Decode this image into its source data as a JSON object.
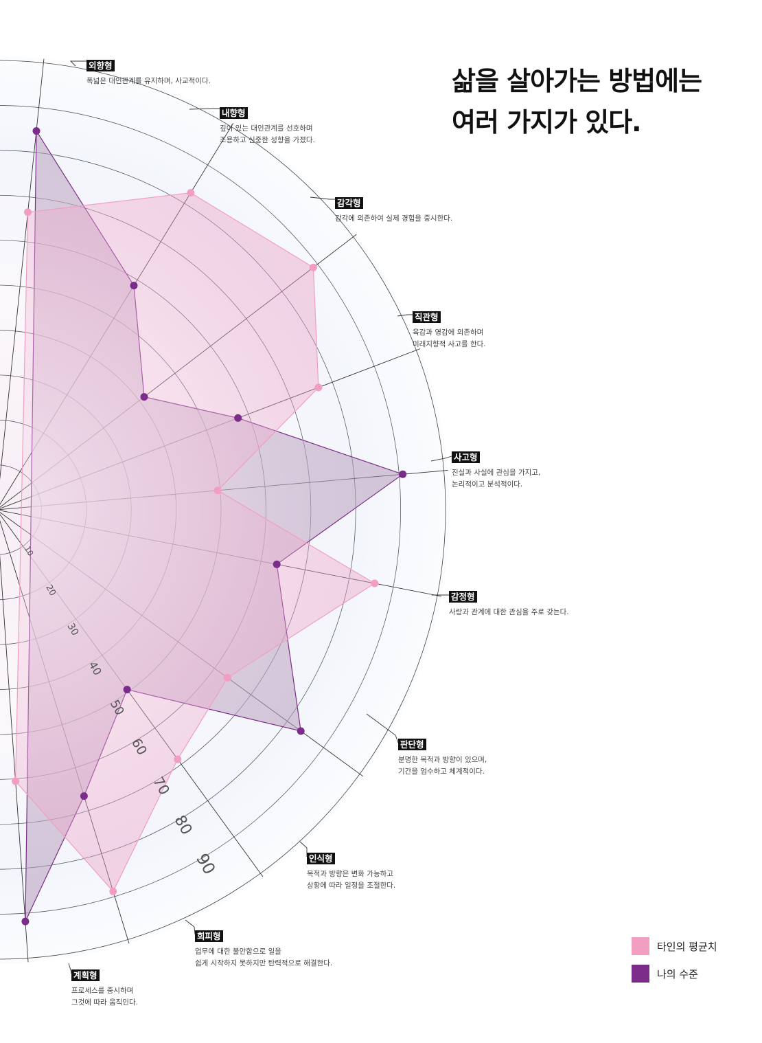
{
  "title": {
    "line1": "삶을 살아가는 방법에는",
    "line2": "여러 가지가 있다."
  },
  "chart_data": {
    "type": "radar",
    "categories": [
      "외향형",
      "내향형",
      "감각형",
      "직관형",
      "사고형",
      "감정형",
      "판단형",
      "인식형",
      "회피형",
      "계획형"
    ],
    "descriptions": [
      "폭넓은 대인관계를 유지하며, 사교적이다.",
      "깊이 있는 대인관계를 선호하며\n조용하고 신중한 성향을 가졌다.",
      "감각에 의존하여 실제 경험을 중시한다.",
      "육감과 영감에 의존하며\n미래지향적 사고를 한다.",
      "진실과 사실에 관심을 가지고,\n논리적이고 분석적이다.",
      "사랑과 관계에 대한 관심을 주로 갖는다.",
      "분명한 목적과 방향이 있으며,\n기간을 엄수하고 체계적이다.",
      "목적과 방향은 변화 가능하고\n상황에 따라 일정을 조절한다.",
      "업무에 대한 불안함으로 일을\n쉽게 시작하지 못하지만 탄력적으로 해결한다.",
      "프로세스를 중시하며\n그것에 따라 움직인다."
    ],
    "axis_ticks": [
      "10",
      "20",
      "30",
      "40",
      "50",
      "60",
      "70",
      "80",
      "90"
    ],
    "rlim": [
      0,
      100
    ],
    "series": [
      {
        "name": "타인의 평균치",
        "color": "#f19ec2",
        "values": [
          66,
          82,
          88,
          76,
          49,
          85,
          63,
          68,
          88,
          60
        ]
      },
      {
        "name": "나의 수준",
        "color": "#7b2b8a",
        "values": [
          84,
          58,
          41,
          57,
          90,
          63,
          83,
          49,
          66,
          91
        ]
      }
    ]
  },
  "legend": {
    "items": [
      {
        "label": "타인의 평균치",
        "color": "#f19ec2"
      },
      {
        "label": "나의 수준",
        "color": "#7b2b8a"
      }
    ]
  }
}
